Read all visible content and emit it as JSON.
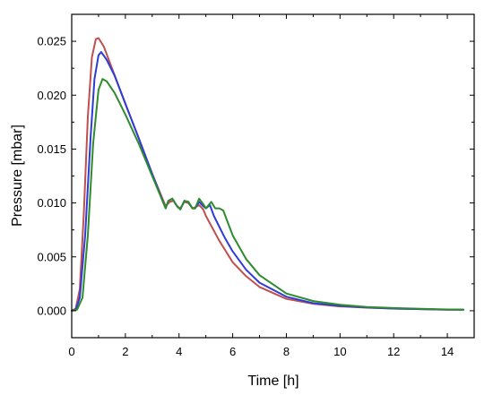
{
  "chart_data": {
    "type": "line",
    "title": "",
    "xlabel": "Time [h]",
    "ylabel": "Pressure [mbar]",
    "xlim": [
      0,
      15
    ],
    "ylim": [
      -0.0025,
      0.0275
    ],
    "x_ticks": [
      0,
      2,
      4,
      6,
      8,
      10,
      12,
      14
    ],
    "x_tick_labels": [
      "0",
      "2",
      "4",
      "6",
      "8",
      "10",
      "12",
      "14"
    ],
    "y_ticks": [
      0.0,
      0.005,
      0.01,
      0.015,
      0.02,
      0.025
    ],
    "y_tick_labels": [
      "0.000",
      "0.005",
      "0.010",
      "0.015",
      "0.020",
      "0.025"
    ],
    "grid": false,
    "legend": "none",
    "series": [
      {
        "color": "#c0504d",
        "points": [
          [
            0,
            0
          ],
          [
            0.15,
            0.0002
          ],
          [
            0.3,
            0.002
          ],
          [
            0.45,
            0.009
          ],
          [
            0.6,
            0.018
          ],
          [
            0.75,
            0.0235
          ],
          [
            0.9,
            0.0252
          ],
          [
            1.0,
            0.0253
          ],
          [
            1.2,
            0.0245
          ],
          [
            1.5,
            0.0225
          ],
          [
            2.0,
            0.0192
          ],
          [
            2.5,
            0.016
          ],
          [
            3.0,
            0.0127
          ],
          [
            3.5,
            0.0097
          ],
          [
            3.65,
            0.0101
          ],
          [
            3.8,
            0.0102
          ],
          [
            3.95,
            0.0096
          ],
          [
            4.05,
            0.0095
          ],
          [
            4.2,
            0.0101
          ],
          [
            4.35,
            0.01
          ],
          [
            4.5,
            0.0095
          ],
          [
            4.6,
            0.0096
          ],
          [
            4.75,
            0.0098
          ],
          [
            4.9,
            0.0094
          ],
          [
            5.0,
            0.0088
          ],
          [
            5.5,
            0.0065
          ],
          [
            6.0,
            0.0045
          ],
          [
            6.5,
            0.0032
          ],
          [
            7.0,
            0.0022
          ],
          [
            8.0,
            0.0011
          ],
          [
            9.0,
            0.00065
          ],
          [
            10.0,
            0.0004
          ],
          [
            11.0,
            0.00028
          ],
          [
            12.0,
            0.0002
          ],
          [
            13.0,
            0.00015
          ],
          [
            14.0,
            0.0001
          ],
          [
            14.6,
            0.0001
          ]
        ]
      },
      {
        "color": "#2e3bd6",
        "points": [
          [
            0,
            0
          ],
          [
            0.15,
            0.0001
          ],
          [
            0.3,
            0.0012
          ],
          [
            0.5,
            0.007
          ],
          [
            0.7,
            0.016
          ],
          [
            0.85,
            0.0215
          ],
          [
            1.0,
            0.0237
          ],
          [
            1.1,
            0.024
          ],
          [
            1.3,
            0.0233
          ],
          [
            1.6,
            0.0218
          ],
          [
            2.0,
            0.0192
          ],
          [
            2.5,
            0.016
          ],
          [
            3.0,
            0.0127
          ],
          [
            3.5,
            0.0095
          ],
          [
            3.6,
            0.0102
          ],
          [
            3.75,
            0.0104
          ],
          [
            3.9,
            0.0098
          ],
          [
            4.05,
            0.0094
          ],
          [
            4.2,
            0.0102
          ],
          [
            4.35,
            0.0101
          ],
          [
            4.5,
            0.0095
          ],
          [
            4.6,
            0.0095
          ],
          [
            4.75,
            0.0101
          ],
          [
            4.9,
            0.0097
          ],
          [
            5.0,
            0.0095
          ],
          [
            5.15,
            0.0098
          ],
          [
            5.3,
            0.0088
          ],
          [
            5.7,
            0.0068
          ],
          [
            6.0,
            0.0055
          ],
          [
            6.5,
            0.0038
          ],
          [
            7.0,
            0.0026
          ],
          [
            8.0,
            0.0013
          ],
          [
            9.0,
            0.0007
          ],
          [
            10.0,
            0.00045
          ],
          [
            11.0,
            0.0003
          ],
          [
            12.0,
            0.0002
          ],
          [
            13.0,
            0.00015
          ],
          [
            14.0,
            0.0001
          ],
          [
            14.6,
            0.0001
          ]
        ]
      },
      {
        "color": "#2e8b2e",
        "points": [
          [
            0,
            0
          ],
          [
            0.2,
            0.0001
          ],
          [
            0.4,
            0.0012
          ],
          [
            0.6,
            0.007
          ],
          [
            0.8,
            0.0155
          ],
          [
            1.0,
            0.0205
          ],
          [
            1.15,
            0.0215
          ],
          [
            1.3,
            0.0213
          ],
          [
            1.6,
            0.0202
          ],
          [
            2.0,
            0.0182
          ],
          [
            2.5,
            0.0155
          ],
          [
            3.0,
            0.0125
          ],
          [
            3.5,
            0.0095
          ],
          [
            3.6,
            0.0102
          ],
          [
            3.75,
            0.0104
          ],
          [
            3.9,
            0.0098
          ],
          [
            4.05,
            0.0094
          ],
          [
            4.2,
            0.0102
          ],
          [
            4.35,
            0.0101
          ],
          [
            4.5,
            0.0095
          ],
          [
            4.6,
            0.0095
          ],
          [
            4.75,
            0.0104
          ],
          [
            4.9,
            0.0099
          ],
          [
            5.0,
            0.0095
          ],
          [
            5.2,
            0.0101
          ],
          [
            5.35,
            0.0095
          ],
          [
            5.5,
            0.0095
          ],
          [
            5.65,
            0.0093
          ],
          [
            5.8,
            0.0083
          ],
          [
            6.0,
            0.007
          ],
          [
            6.5,
            0.0048
          ],
          [
            7.0,
            0.0033
          ],
          [
            8.0,
            0.0016
          ],
          [
            9.0,
            0.0009
          ],
          [
            10.0,
            0.00055
          ],
          [
            11.0,
            0.00035
          ],
          [
            12.0,
            0.00025
          ],
          [
            13.0,
            0.00018
          ],
          [
            14.0,
            0.00012
          ],
          [
            14.6,
            0.0001
          ]
        ]
      }
    ]
  }
}
